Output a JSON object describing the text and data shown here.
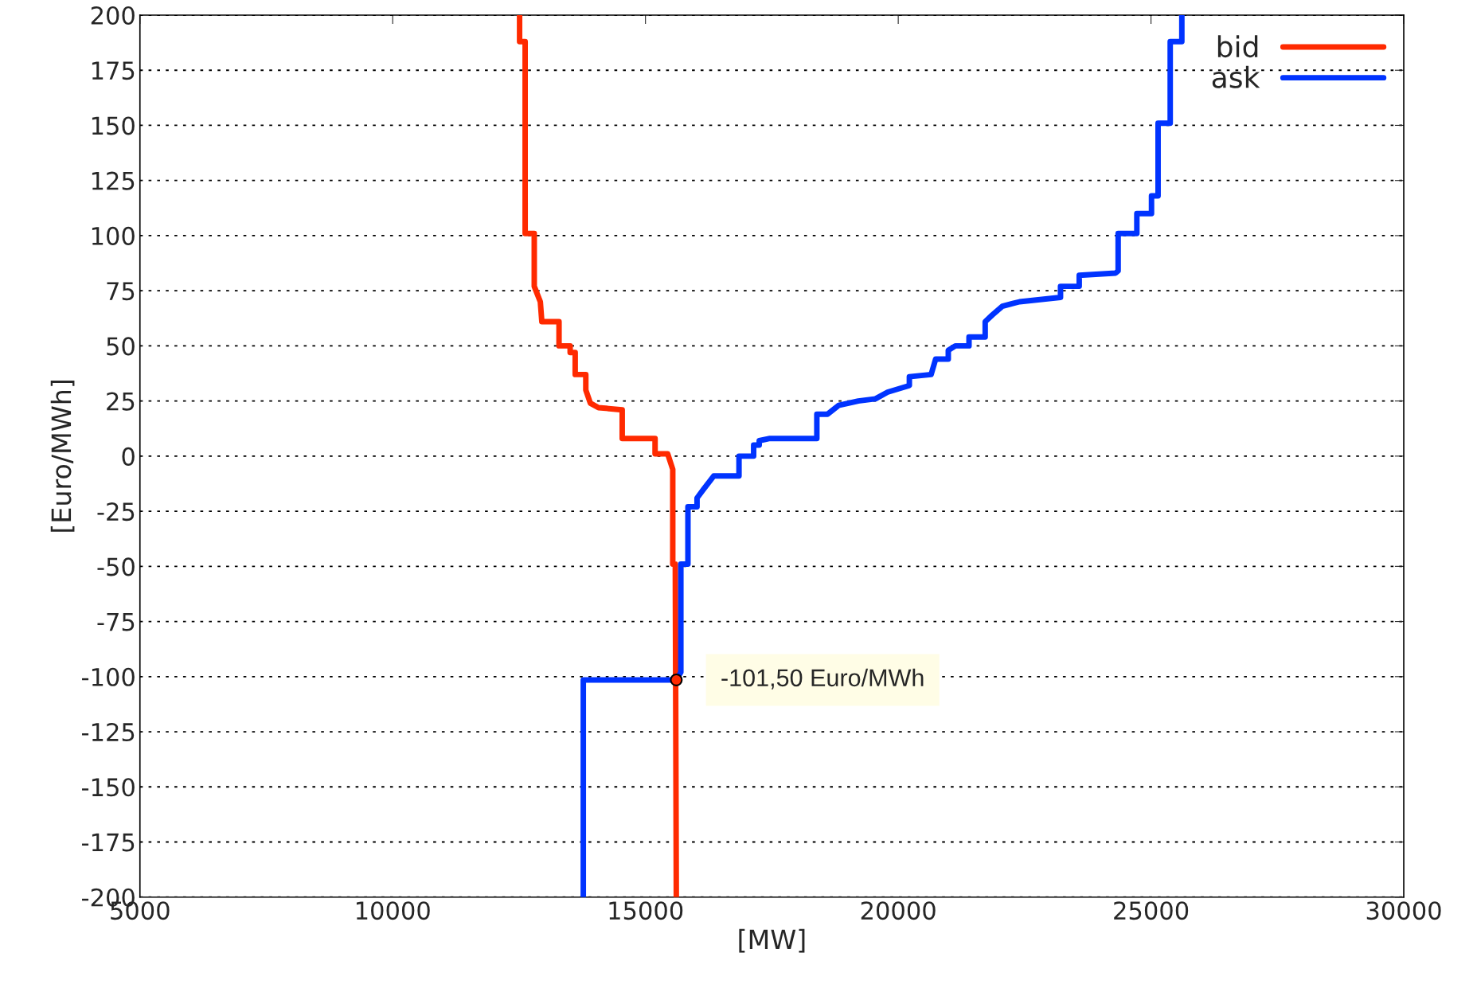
{
  "chart_data": {
    "type": "line",
    "xlabel": "[MW]",
    "ylabel": "[Euro/MWh]",
    "xlim": [
      5000,
      30000
    ],
    "xticks": [
      5000,
      10000,
      15000,
      20000,
      25000,
      30000
    ],
    "ylim": [
      -200,
      200
    ],
    "yticks": [
      -200,
      -175,
      -150,
      -125,
      -100,
      -75,
      -50,
      -25,
      0,
      25,
      50,
      75,
      100,
      125,
      150,
      175,
      200
    ],
    "grid": "y",
    "legend": "top right",
    "line_style": "solid",
    "marker": "none",
    "annotations": [
      {
        "text": "-101,50 Euro/MWh",
        "x": 15610,
        "y": -101.5
      }
    ],
    "series": [
      {
        "name": "bid",
        "color": "#ff2a00",
        "x": [
          12510,
          12510,
          12620,
          12620,
          12800,
          12800,
          12920,
          12950,
          13290,
          13290,
          13510,
          13510,
          13610,
          13610,
          13820,
          13820,
          13910,
          14070,
          14540,
          14540,
          15190,
          15190,
          15440,
          15540,
          15540,
          15590,
          15610
        ],
        "values": [
          200,
          188,
          188,
          101,
          101,
          77,
          70,
          61,
          61,
          50,
          50,
          47,
          47,
          37,
          37,
          30,
          24,
          22,
          21,
          8,
          8,
          1,
          1,
          -6,
          -49,
          -49,
          -200
        ]
      },
      {
        "name": "ask",
        "color": "#0033ff",
        "x": [
          13770,
          13770,
          15610,
          15700,
          15700,
          15840,
          15840,
          16020,
          16020,
          16150,
          16350,
          16850,
          16850,
          17140,
          17140,
          17250,
          17250,
          17460,
          18390,
          18390,
          18600,
          18820,
          19210,
          19550,
          19790,
          20220,
          20220,
          20650,
          20740,
          20990,
          20990,
          21130,
          21400,
          21400,
          21720,
          21720,
          21860,
          22060,
          22400,
          23210,
          23210,
          23580,
          23580,
          24300,
          24350,
          24350,
          24720,
          24720,
          25010,
          25010,
          25140,
          25140,
          25380,
          25380,
          25610,
          25610
        ],
        "values": [
          -200,
          -101.5,
          -101.5,
          -98,
          -49,
          -49,
          -23,
          -23,
          -19,
          -15,
          -9,
          -9,
          0,
          0,
          5,
          5,
          7,
          8,
          8,
          19,
          19,
          23,
          25,
          26,
          29,
          32,
          36,
          37,
          44,
          44,
          48,
          50,
          50,
          54,
          54,
          61,
          64,
          68,
          70,
          72,
          77,
          77,
          82,
          83,
          84,
          101,
          101,
          110,
          110,
          118,
          118,
          151,
          151,
          188,
          188,
          200
        ]
      }
    ]
  }
}
